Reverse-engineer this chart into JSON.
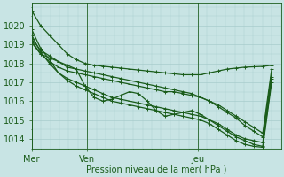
{
  "title": "",
  "xlabel": "Pression niveau de la mer( hPa )",
  "ylabel": "",
  "background_color": "#c8e4e4",
  "grid_color": "#a8cccc",
  "line_color": "#1a5c1a",
  "marker_color": "#1a5c1a",
  "ylim": [
    1013.5,
    1021.2
  ],
  "xlim": [
    0,
    108
  ],
  "xticks": [
    0,
    24,
    72
  ],
  "xticklabels": [
    "Mer",
    "Ven",
    "Jeu"
  ],
  "yticks": [
    1014,
    1015,
    1016,
    1017,
    1018,
    1019,
    1020
  ],
  "series": [
    [
      1020.8,
      1020.0,
      1019.5,
      1019.0,
      1018.5,
      1018.2,
      1018.0,
      1017.9,
      1017.85,
      1017.8,
      1017.75,
      1017.7,
      1017.65,
      1017.6,
      1017.55,
      1017.5,
      1017.45,
      1017.4,
      1017.4,
      1017.4,
      1017.5,
      1017.6,
      1017.7,
      1017.75,
      1017.8,
      1017.82,
      1017.84,
      1017.9
    ],
    [
      1019.8,
      1018.8,
      1018.2,
      1017.5,
      1017.2,
      1017.0,
      1016.8,
      1016.6,
      1016.4,
      1016.2,
      1016.1,
      1016.0,
      1015.9,
      1015.8,
      1015.7,
      1015.6,
      1015.5,
      1015.4,
      1015.3,
      1015.2,
      1015.0,
      1014.8,
      1014.5,
      1014.2,
      1014.0,
      1013.9,
      1013.8,
      1017.2
    ],
    [
      1019.5,
      1018.6,
      1018.0,
      1017.5,
      1017.1,
      1016.8,
      1016.6,
      1016.4,
      1016.2,
      1016.0,
      1015.9,
      1015.8,
      1015.7,
      1015.6,
      1015.5,
      1015.4,
      1015.3,
      1015.2,
      1015.1,
      1015.0,
      1014.8,
      1014.5,
      1014.2,
      1013.9,
      1013.7,
      1013.6,
      1013.55,
      1017.0
    ],
    [
      1019.2,
      1018.5,
      1018.3,
      1018.1,
      1017.8,
      1017.7,
      1016.8,
      1016.2,
      1016.0,
      1016.1,
      1016.3,
      1016.5,
      1016.4,
      1016.0,
      1015.5,
      1015.2,
      1015.3,
      1015.4,
      1015.5,
      1015.3,
      1015.0,
      1014.7,
      1014.4,
      1014.1,
      1013.9,
      1013.7,
      1013.6,
      1017.3
    ],
    [
      1019.3,
      1018.7,
      1018.4,
      1018.1,
      1017.9,
      1017.7,
      1017.6,
      1017.5,
      1017.4,
      1017.3,
      1017.2,
      1017.1,
      1017.0,
      1016.9,
      1016.8,
      1016.7,
      1016.6,
      1016.5,
      1016.4,
      1016.2,
      1016.0,
      1015.8,
      1015.5,
      1015.2,
      1014.9,
      1014.6,
      1014.3,
      1017.7
    ],
    [
      1019.1,
      1018.5,
      1018.1,
      1017.8,
      1017.6,
      1017.5,
      1017.4,
      1017.3,
      1017.2,
      1017.1,
      1017.0,
      1016.9,
      1016.8,
      1016.7,
      1016.6,
      1016.5,
      1016.5,
      1016.4,
      1016.3,
      1016.2,
      1016.0,
      1015.7,
      1015.4,
      1015.1,
      1014.7,
      1014.4,
      1014.1,
      1017.5
    ]
  ],
  "vlines_x": [
    0,
    24,
    72
  ],
  "n_points": 28,
  "marker_size": 3,
  "line_width": 0.9
}
